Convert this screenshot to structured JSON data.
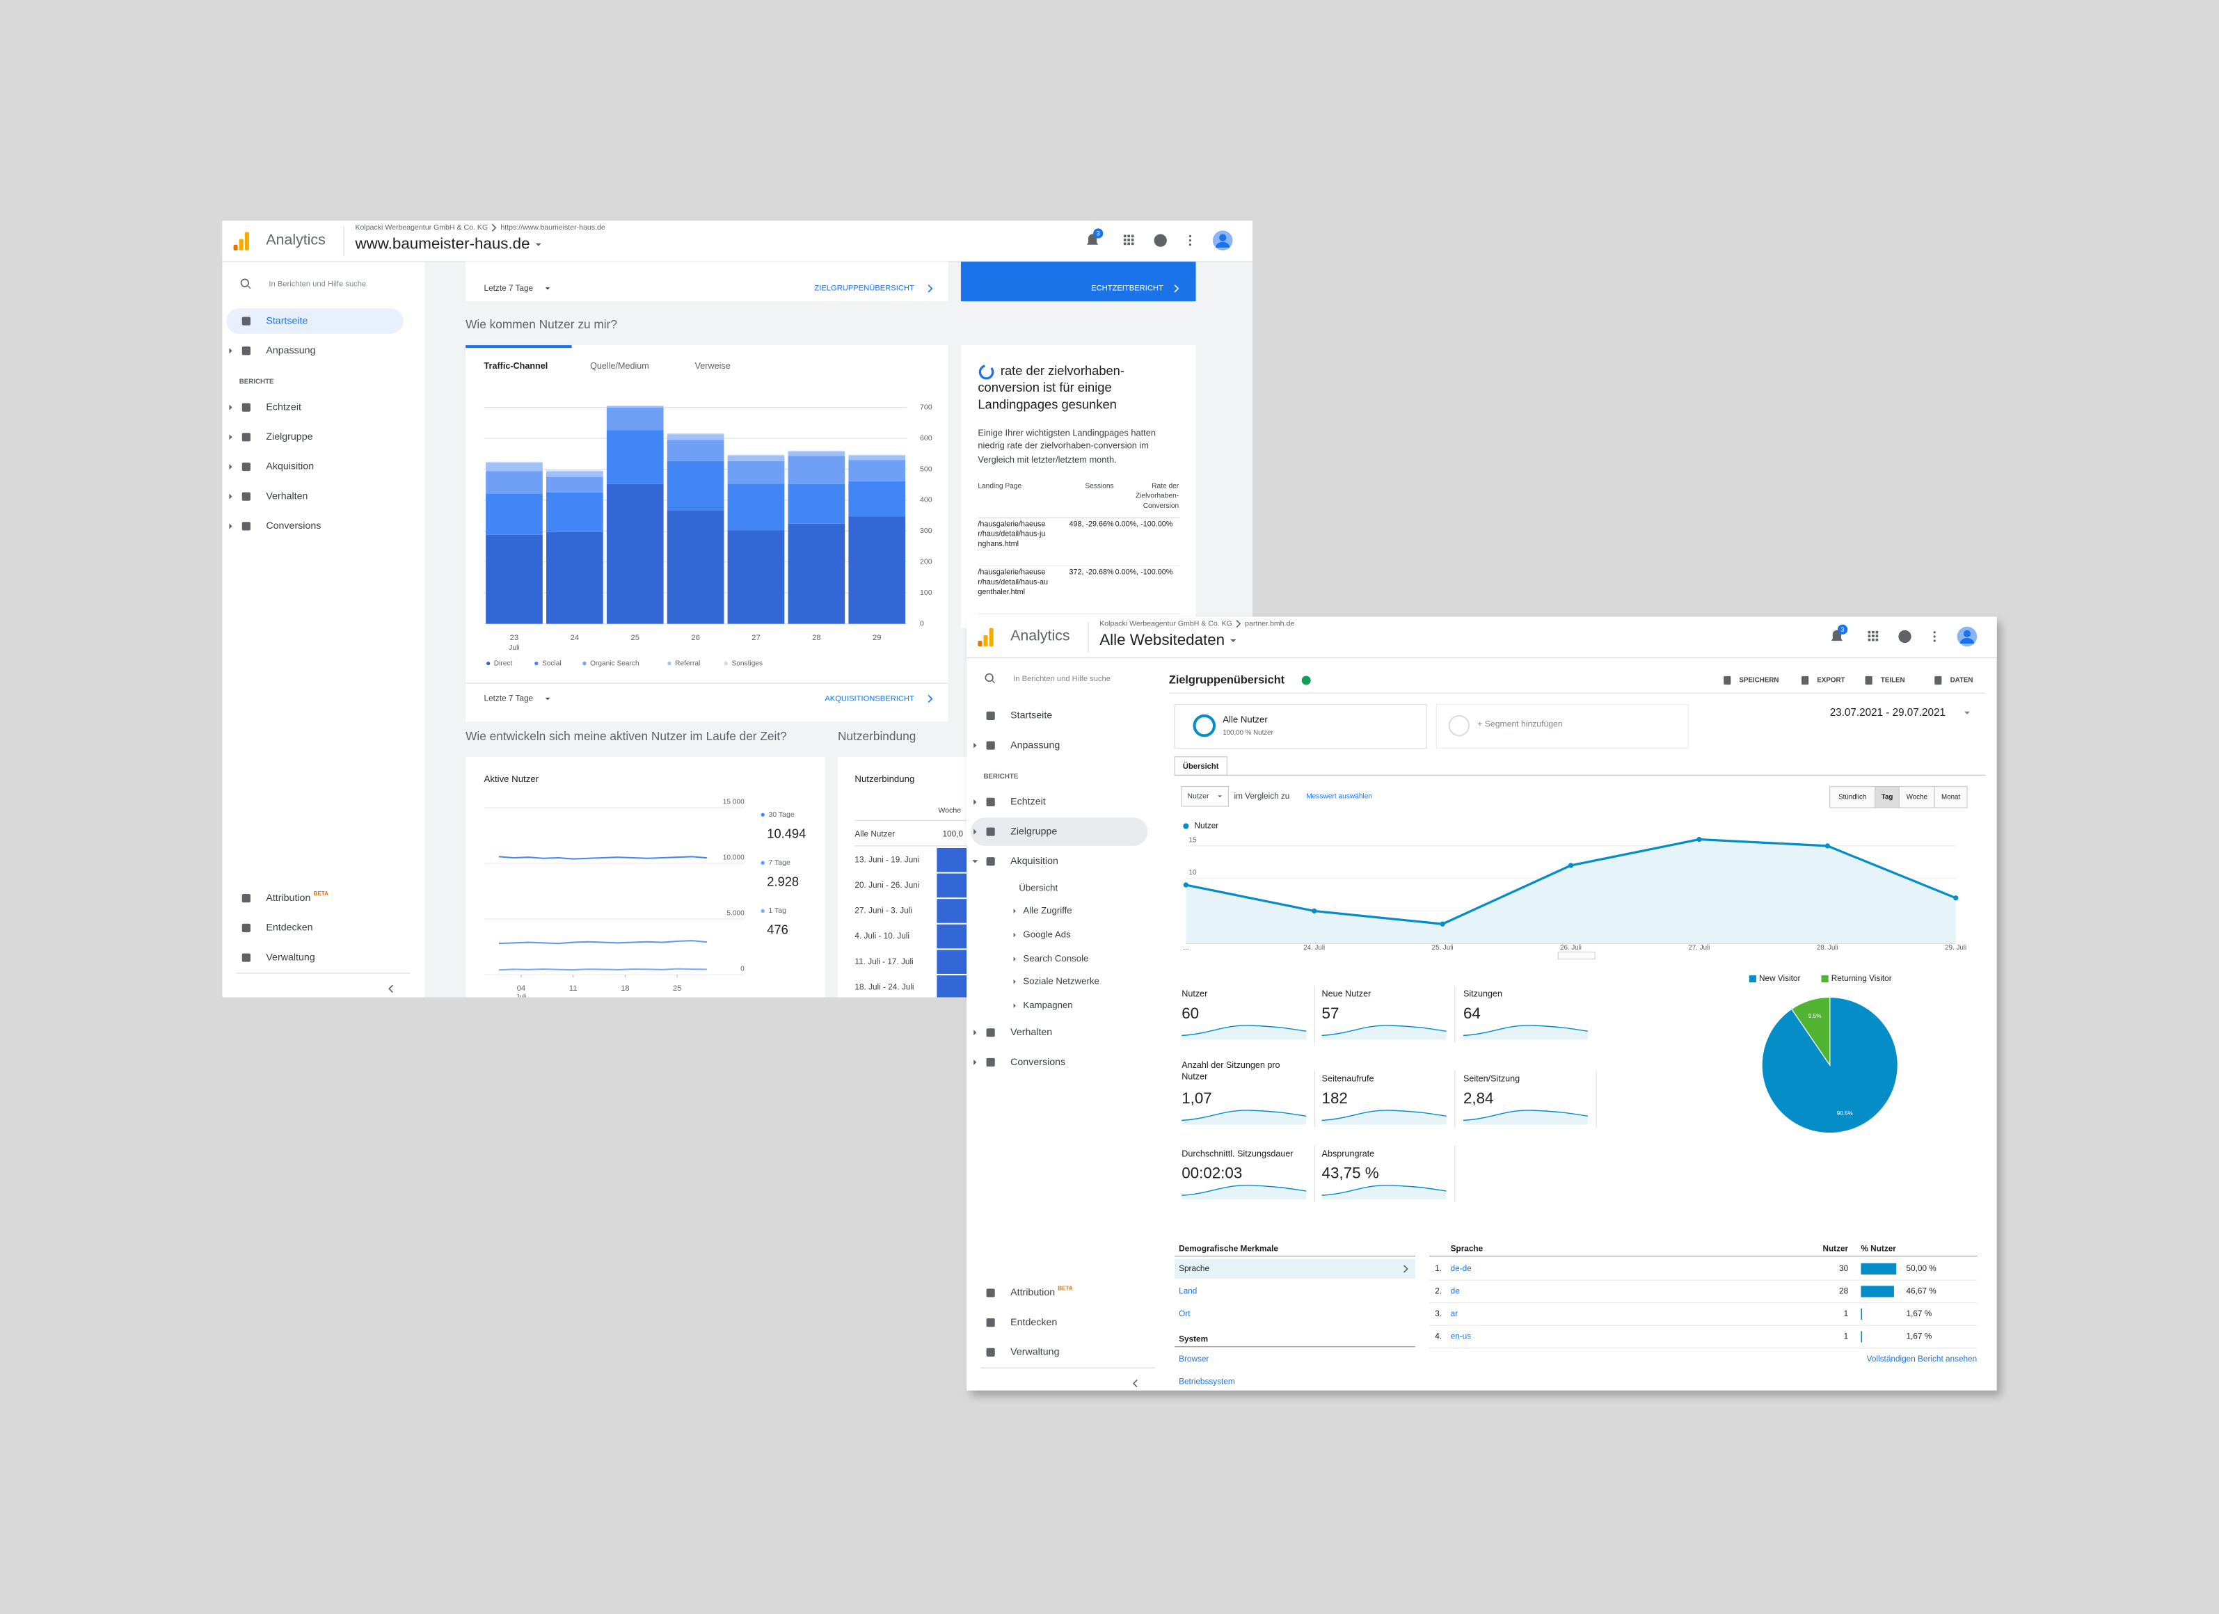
{
  "window1": {
    "header": {
      "brand": "Analytics",
      "account": "Kolpacki Werbeagentur GmbH & Co. KG",
      "url": "https://www.baumeister-haus.de",
      "property": "www.baumeister-haus.de",
      "badge": "3"
    },
    "sidebar": {
      "search": "In Berichten und Hilfe suche",
      "items": [
        "Startseite",
        "Anpassung"
      ],
      "section": "BERICHTE",
      "reports": [
        "Echtzeit",
        "Zielgruppe",
        "Akquisition",
        "Verhalten",
        "Conversions"
      ],
      "bottom": [
        "Attribution",
        "Entdecken",
        "Verwaltung"
      ],
      "beta": "BETA"
    },
    "top_card": {
      "range": "Letzte 7 Tage",
      "link": "ZIELGRUPPENÜBERSICHT",
      "button": "ECHTZEITBERICHT"
    },
    "traffic": {
      "heading": "Wie kommen Nutzer zu mir?",
      "tabs": [
        "Traffic-Channel",
        "Quelle/Medium",
        "Verweise"
      ],
      "chart": {
        "type": "bar",
        "stacked": true,
        "categories": [
          "23",
          "24",
          "25",
          "26",
          "27",
          "28",
          "29"
        ],
        "month": "Juli",
        "series": [
          {
            "name": "Direct",
            "color": "#3367d6",
            "values": [
              288,
              297,
              452,
              366,
              302,
              324,
              347
            ]
          },
          {
            "name": "Social",
            "color": "#4285f4",
            "values": [
              133,
              128,
              174,
              160,
              151,
              128,
              114
            ]
          },
          {
            "name": "Organic Search",
            "color": "#6fa0f5",
            "values": [
              73,
              50,
              73,
              69,
              73,
              91,
              69
            ]
          },
          {
            "name": "Referral",
            "color": "#9fc0f8",
            "values": [
              27,
              18,
              5,
              18,
              18,
              14,
              14
            ]
          },
          {
            "name": "Sonstiges",
            "color": "#c6dafc",
            "values": [
              3,
              3,
              2,
              3,
              3,
              3,
              3
            ]
          }
        ],
        "ylim": [
          0,
          700
        ],
        "yticks": [
          0,
          100,
          200,
          300,
          400,
          500,
          600,
          700
        ],
        "grid": true
      },
      "range": "Letzte 7 Tage",
      "link": "AKQUISITIONSBERICHT"
    },
    "insight": {
      "title": "rate der zielvorhaben-conversion ist für einige Landingpages gesunken",
      "body": "Einige Ihrer wichtigsten Landingpages hatten niedrig rate der zielvorhaben-conversion im Vergleich mit letzter/letztem month.",
      "columns": [
        "Landing Page",
        "Sessions",
        "Rate der Zielvorhaben-Conversion"
      ],
      "rows": [
        [
          "/hausgalerie/haeuser/haus/detail/haus-junghans.html",
          "498, -29.66%",
          "0.00%, -100.00%"
        ],
        [
          "/hausgalerie/haeuser/haus/detail/haus-augenthaler.html",
          "372, -20.68%",
          "0.00%, -100.00%"
        ]
      ]
    },
    "active_users": {
      "heading": "Wie entwickeln sich meine aktiven Nutzer im Laufe der Zeit?",
      "chart": {
        "type": "line",
        "title": "Aktive Nutzer",
        "x": [
          1,
          3,
          5,
          7,
          9,
          11,
          13,
          15,
          17,
          19,
          21,
          23,
          25,
          27,
          29
        ],
        "xlim": [
          -1,
          31
        ],
        "xticks": [
          {
            "value": 4,
            "label": "04"
          },
          11,
          18,
          25
        ],
        "month": "Juli",
        "series": [
          {
            "name": "30 Tage",
            "color": "#4285f4",
            "values": [
              10600,
              10500,
              10550,
              10450,
              10500,
              10400,
              10450,
              10500,
              10550,
              10500,
              10450,
              10500,
              10550,
              10600,
              10494
            ]
          },
          {
            "name": "7 Tage",
            "color": "#5e97f6",
            "values": [
              2800,
              2850,
              2900,
              2850,
              2800,
              2900,
              2950,
              2900,
              2850,
              2900,
              2950,
              2900,
              3000,
              3050,
              2928
            ]
          },
          {
            "name": "1 Tag",
            "color": "#7baaf7",
            "values": [
              420,
              480,
              450,
              500,
              460,
              430,
              490,
              470,
              440,
              500,
              480,
              450,
              520,
              490,
              476
            ]
          }
        ],
        "latest": [
          10494,
          2928,
          476
        ],
        "latest_labels": [
          "10.494",
          "2.928",
          "476"
        ],
        "ylim": [
          0,
          15000
        ],
        "yticks": [
          0,
          {
            "value": 5000,
            "label": "5.000"
          },
          {
            "value": 10000,
            "label": "10.000"
          },
          {
            "value": 15000,
            "label": "15 000"
          }
        ],
        "grid": true
      }
    },
    "retention": {
      "heading": "Nutzerbindung",
      "title": "Nutzerbindung",
      "column": "Woche",
      "first_row": "Alle Nutzer",
      "first_value": "100,0",
      "rows": [
        "13. Juni - 19. Juni",
        "20. Juni - 26. Juni",
        "27. Juni - 3. Juli",
        "4. Juli - 10. Juli",
        "11. Juli - 17. Juli",
        "18. Juli - 24. Juli"
      ]
    }
  },
  "window2": {
    "header": {
      "brand": "Analytics",
      "account": "Kolpacki Werbeagentur GmbH & Co. KG",
      "url": "partner.bmh.de",
      "property": "Alle Websitedaten",
      "badge": "3"
    },
    "sidebar": {
      "search": "In Berichten und Hilfe suche",
      "items": [
        "Startseite",
        "Anpassung"
      ],
      "section": "BERICHTE",
      "reports": [
        "Echtzeit",
        "Zielgruppe",
        "Akquisition",
        "Verhalten",
        "Conversions"
      ],
      "acquisition_sub": [
        "Übersicht",
        "Alle Zugriffe",
        "Google Ads",
        "Search Console",
        "Soziale Netzwerke",
        "Kampagnen"
      ],
      "bottom": [
        "Attribution",
        "Entdecken",
        "Verwaltung"
      ],
      "beta": "BETA"
    },
    "report": {
      "title": "Zielgruppenübersicht",
      "actions": [
        "SPEICHERN",
        "EXPORT",
        "TEILEN",
        "DATEN"
      ],
      "segment": "Alle Nutzer",
      "segment_share": "100,00 % Nutzer",
      "add_segment": "+ Segment hinzufügen",
      "date_range": "23.07.2021 - 29.07.2021",
      "tab": "Übersicht",
      "metric": "Nutzer",
      "compare": "im Vergleich zu",
      "select_metric": "Messwert auswählen",
      "granularity": [
        "Stündlich",
        "Tag",
        "Woche",
        "Monat"
      ]
    },
    "chart": {
      "type": "line",
      "legend": "Nutzer",
      "color": "#058dc7",
      "categories": [
        "...",
        "24. Juli",
        "25. Juli",
        "26. Juli",
        "27. Juli",
        "28. Juli",
        "29. Juli"
      ],
      "values": [
        9,
        5,
        3,
        12,
        16,
        15,
        7
      ],
      "ylim": [
        0,
        17
      ],
      "yticks": [
        5,
        10,
        15
      ],
      "grid": true
    },
    "metrics": [
      {
        "label": "Nutzer",
        "value": 60
      },
      {
        "label": "Neue Nutzer",
        "value": 57
      },
      {
        "label": "Sitzungen",
        "value": 64
      },
      {
        "label": "Anzahl der Sitzungen pro Nutzer",
        "value": "1,07"
      },
      {
        "label": "Seitenaufrufe",
        "value": 182
      },
      {
        "label": "Seiten/Sitzung",
        "value": "2,84"
      },
      {
        "label": "Durchschnittl. Sitzungsdauer",
        "value": "00:02:03"
      },
      {
        "label": "Absprungrate",
        "value": "43,75 %"
      }
    ],
    "pie": {
      "type": "pie",
      "categories": [
        "New Visitor",
        "Returning Visitor"
      ],
      "values": [
        90.5,
        9.5
      ],
      "value_labels": [
        "90.5%",
        "9.5%"
      ],
      "colors": [
        "#058dc7",
        "#50b432"
      ]
    },
    "demographics": {
      "title": "Demografische Merkmale",
      "items": [
        "Sprache",
        "Land",
        "Ort"
      ],
      "system_title": "System",
      "system_items": [
        "Browser",
        "Betriebssystem"
      ]
    },
    "language_table": {
      "columns": [
        "Sprache",
        "Nutzer",
        "% Nutzer"
      ],
      "rows": [
        {
          "rank": "1.",
          "name": "de-de",
          "users": 30,
          "share": 50,
          "share_label": "50,00 %"
        },
        {
          "rank": "2.",
          "name": "de",
          "users": 28,
          "share": 46.67,
          "share_label": "46,67 %"
        },
        {
          "rank": "3.",
          "name": "ar",
          "users": 1,
          "share": 1.67,
          "share_label": "1,67 %"
        },
        {
          "rank": "4.",
          "name": "en-us",
          "users": 1,
          "share": 1.67,
          "share_label": "1,67 %"
        }
      ],
      "full_report": "Vollständigen Bericht ansehen"
    }
  }
}
